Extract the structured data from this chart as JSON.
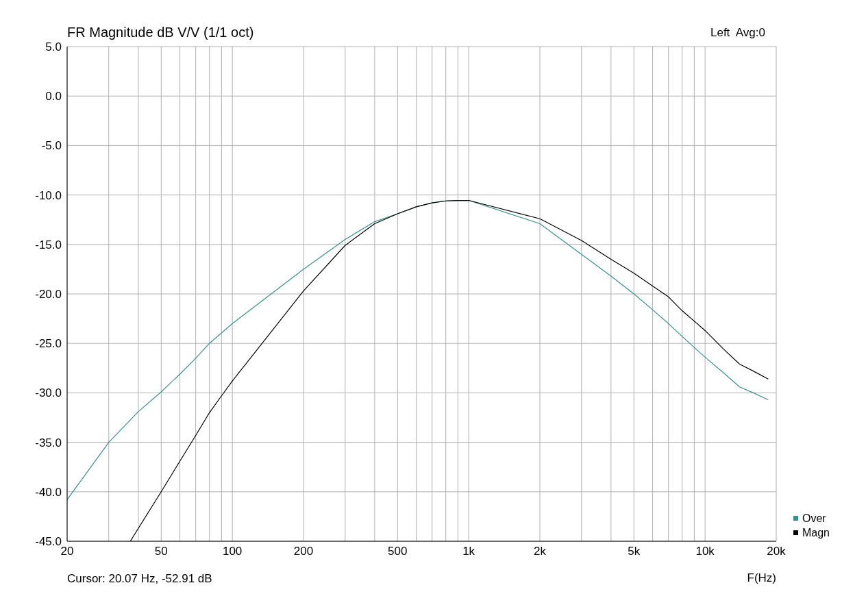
{
  "chart_data": {
    "type": "line",
    "title": "FR Magnitude dB V/V (1/1 oct)",
    "xlabel": "F(Hz)",
    "annotations": [
      "Left  Avg:0",
      "Cursor: 20.07 Hz, -52.91 dB"
    ],
    "log": "x",
    "grid": true,
    "legend": "bottom right",
    "marker": "none",
    "line_style": "solid",
    "xlim": [
      20,
      20000
    ],
    "ylim": [
      -45,
      5
    ],
    "xticks": [
      20,
      {
        "value": 30,
        "label": null
      },
      {
        "value": 40,
        "label": null
      },
      50,
      {
        "value": 60,
        "label": null
      },
      {
        "value": 70,
        "label": null
      },
      {
        "value": 80,
        "label": null
      },
      {
        "value": 90,
        "label": null
      },
      100,
      200,
      {
        "value": 300,
        "label": null
      },
      {
        "value": 400,
        "label": null
      },
      500,
      {
        "value": 600,
        "label": null
      },
      {
        "value": 700,
        "label": null
      },
      {
        "value": 800,
        "label": null
      },
      {
        "value": 900,
        "label": null
      },
      {
        "value": 1000,
        "label": "1k"
      },
      {
        "value": 2000,
        "label": "2k"
      },
      {
        "value": 3000,
        "label": null
      },
      {
        "value": 4000,
        "label": null
      },
      {
        "value": 5000,
        "label": "5k"
      },
      {
        "value": 6000,
        "label": null
      },
      {
        "value": 7000,
        "label": null
      },
      {
        "value": 8000,
        "label": null
      },
      {
        "value": 9000,
        "label": null
      },
      {
        "value": 10000,
        "label": "10k"
      },
      {
        "value": 20000,
        "label": "20k"
      }
    ],
    "yticks": [
      {
        "value": 5,
        "label": "5.0"
      },
      {
        "value": 0,
        "label": "0.0"
      },
      {
        "value": -5,
        "label": "-5.0"
      },
      {
        "value": -10,
        "label": "-10.0"
      },
      {
        "value": -15,
        "label": "-15.0"
      },
      {
        "value": -20,
        "label": "-20.0"
      },
      {
        "value": -25,
        "label": "-25.0"
      },
      {
        "value": -30,
        "label": "-30.0"
      },
      {
        "value": -35,
        "label": "-35.0"
      },
      {
        "value": -40,
        "label": "-40.0"
      },
      {
        "value": -45,
        "label": "-45.0"
      }
    ],
    "series": [
      {
        "name": "Over",
        "color": "#3a8f8f",
        "x": [
          20,
          30,
          40,
          50,
          60,
          70,
          80,
          100,
          200,
          300,
          400,
          500,
          600,
          700,
          800,
          900,
          1000,
          2000,
          3000,
          4000,
          5000,
          6000,
          7000,
          8000,
          10000,
          12000,
          14000,
          16000,
          18500
        ],
        "values": [
          -40.8,
          -35.0,
          -31.9,
          -29.9,
          -28.1,
          -26.5,
          -25.0,
          -23.0,
          -17.5,
          -14.5,
          -12.7,
          -11.9,
          -11.2,
          -10.8,
          -10.6,
          -10.55,
          -10.55,
          -12.9,
          -16.0,
          -18.2,
          -20.0,
          -21.6,
          -23.0,
          -24.3,
          -26.4,
          -28.0,
          -29.4,
          -30.0,
          -30.7
        ]
      },
      {
        "name": "Magn",
        "color": "#000000",
        "x": [
          37,
          40,
          50,
          60,
          70,
          80,
          90,
          100,
          200,
          300,
          400,
          500,
          600,
          700,
          800,
          900,
          1000,
          2000,
          3000,
          4000,
          5000,
          6000,
          7000,
          8000,
          10000,
          12000,
          14000,
          16000,
          18500
        ],
        "values": [
          -45,
          -43.7,
          -40.0,
          -36.9,
          -34.3,
          -32.0,
          -30.3,
          -28.8,
          -19.7,
          -15.1,
          -12.9,
          -11.9,
          -11.2,
          -10.8,
          -10.6,
          -10.55,
          -10.55,
          -12.4,
          -14.6,
          -16.5,
          -17.9,
          -19.2,
          -20.3,
          -21.7,
          -23.7,
          -25.6,
          -27.1,
          -27.8,
          -28.6
        ]
      }
    ]
  }
}
